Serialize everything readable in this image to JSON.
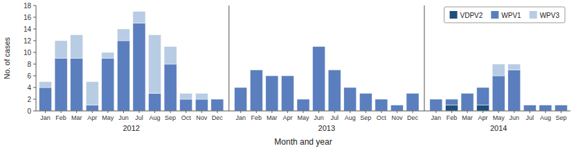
{
  "chart_data": {
    "type": "bar",
    "stacked": true,
    "x_label": "Month and year",
    "y_label": "No. of cases",
    "categories": [
      "Jan",
      "Feb",
      "Mar",
      "Apr",
      "May",
      "Jun",
      "Jul",
      "Aug",
      "Sep",
      "Oct",
      "Nov",
      "Dec",
      "Jan",
      "Feb",
      "Mar",
      "Apr",
      "May",
      "Jun",
      "Jul",
      "Aug",
      "Sep",
      "Oct",
      "Nov",
      "Dec",
      "Jan",
      "Feb",
      "Mar",
      "Apr",
      "May",
      "Jun",
      "Jul",
      "Aug",
      "Sep"
    ],
    "x_groups": [
      {
        "label": "2012",
        "count": 12
      },
      {
        "label": "2013",
        "count": 12
      },
      {
        "label": "2014",
        "count": 9
      }
    ],
    "series": [
      {
        "name": "VDPV2",
        "color": "#1f4e79",
        "values": [
          0,
          0,
          0,
          0,
          0,
          0,
          0,
          0,
          0,
          0,
          0,
          0,
          0,
          0,
          0,
          0,
          0,
          0,
          0,
          0,
          0,
          0,
          0,
          0,
          0,
          1,
          0,
          1,
          0,
          0,
          0,
          0,
          0
        ]
      },
      {
        "name": "WPV1",
        "color": "#5b7fbe",
        "values": [
          4,
          9,
          9,
          1,
          9,
          12,
          15,
          3,
          8,
          2,
          2,
          2,
          4,
          7,
          6,
          6,
          2,
          11,
          7,
          4,
          3,
          2,
          1,
          3,
          2,
          1,
          3,
          3,
          6,
          7,
          1,
          1,
          1
        ]
      },
      {
        "name": "WPV3",
        "color": "#b8cce4",
        "values": [
          1,
          3,
          4,
          4,
          1,
          2,
          2,
          10,
          3,
          1,
          1,
          0,
          0,
          0,
          0,
          0,
          0,
          0,
          0,
          0,
          0,
          0,
          0,
          0,
          0,
          0,
          0,
          0,
          2,
          1,
          0,
          0,
          0
        ]
      }
    ],
    "ylim": [
      0,
      18
    ],
    "yticks": [
      0,
      2,
      4,
      6,
      8,
      10,
      12,
      14,
      16,
      18
    ],
    "grid": false,
    "legend": "top-right"
  }
}
